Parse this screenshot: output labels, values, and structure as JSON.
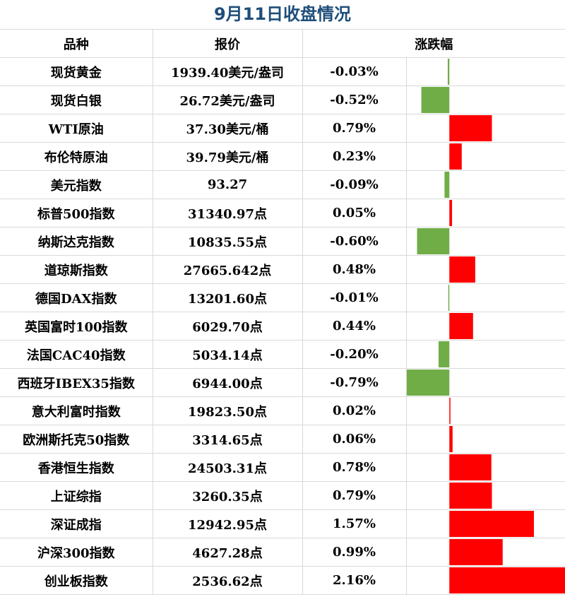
{
  "title": "9月11日收盘情况",
  "headers": {
    "name": "品种",
    "price": "报价",
    "change": "涨跌幅"
  },
  "colors": {
    "positive": "#ff0000",
    "negative": "#70ad47",
    "title": "#1f4e79"
  },
  "chart_data": {
    "type": "bar",
    "title": "9月11日收盘情况",
    "categories": [
      "现货黄金",
      "现货白银",
      "WTI原油",
      "布伦特原油",
      "美元指数",
      "标普500指数",
      "纳斯达克指数",
      "道琼斯指数",
      "德国DAX指数",
      "英国富时100指数",
      "法国CAC40指数",
      "西班牙IBEX35指数",
      "意大利富时指数",
      "欧洲斯托克50指数",
      "香港恒生指数",
      "上证综指",
      "深证成指",
      "沪深300指数",
      "创业板指数"
    ],
    "values": [
      -0.03,
      -0.52,
      0.79,
      0.23,
      -0.09,
      0.05,
      -0.6,
      0.48,
      -0.01,
      0.44,
      -0.2,
      -0.79,
      0.02,
      0.06,
      0.78,
      0.79,
      1.57,
      0.99,
      2.16
    ],
    "xlim": [
      -0.79,
      2.16
    ]
  },
  "rows": [
    {
      "name": "现货黄金",
      "price": "1939.40美元/盎司",
      "change_label": "-0.03%"
    },
    {
      "name": "现货白银",
      "price": "26.72美元/盎司",
      "change_label": "-0.52%"
    },
    {
      "name": "WTI原油",
      "price": "37.30美元/桶",
      "change_label": "0.79%"
    },
    {
      "name": "布伦特原油",
      "price": "39.79美元/桶",
      "change_label": "0.23%"
    },
    {
      "name": "美元指数",
      "price": "93.27",
      "change_label": "-0.09%"
    },
    {
      "name": "标普500指数",
      "price": "31340.97点",
      "change_label": "0.05%"
    },
    {
      "name": "纳斯达克指数",
      "price": "10835.55点",
      "change_label": "-0.60%"
    },
    {
      "name": "道琼斯指数",
      "price": "27665.642点",
      "change_label": "0.48%"
    },
    {
      "name": "德国DAX指数",
      "price": "13201.60点",
      "change_label": "-0.01%"
    },
    {
      "name": "英国富时100指数",
      "price": "6029.70点",
      "change_label": "0.44%"
    },
    {
      "name": "法国CAC40指数",
      "price": "5034.14点",
      "change_label": "-0.20%"
    },
    {
      "name": "西班牙IBEX35指数",
      "price": "6944.00点",
      "change_label": "-0.79%"
    },
    {
      "name": "意大利富时指数",
      "price": "19823.50点",
      "change_label": "0.02%"
    },
    {
      "name": "欧洲斯托克50指数",
      "price": "3314.65点",
      "change_label": "0.06%"
    },
    {
      "name": "香港恒生指数",
      "price": "24503.31点",
      "change_label": "0.78%"
    },
    {
      "name": "上证综指",
      "price": "3260.35点",
      "change_label": "0.79%"
    },
    {
      "name": "深证成指",
      "price": "12942.95点",
      "change_label": "1.57%"
    },
    {
      "name": "沪深300指数",
      "price": "4627.28点",
      "change_label": "0.99%"
    },
    {
      "name": "创业板指数",
      "price": "2536.62点",
      "change_label": "2.16%"
    }
  ]
}
